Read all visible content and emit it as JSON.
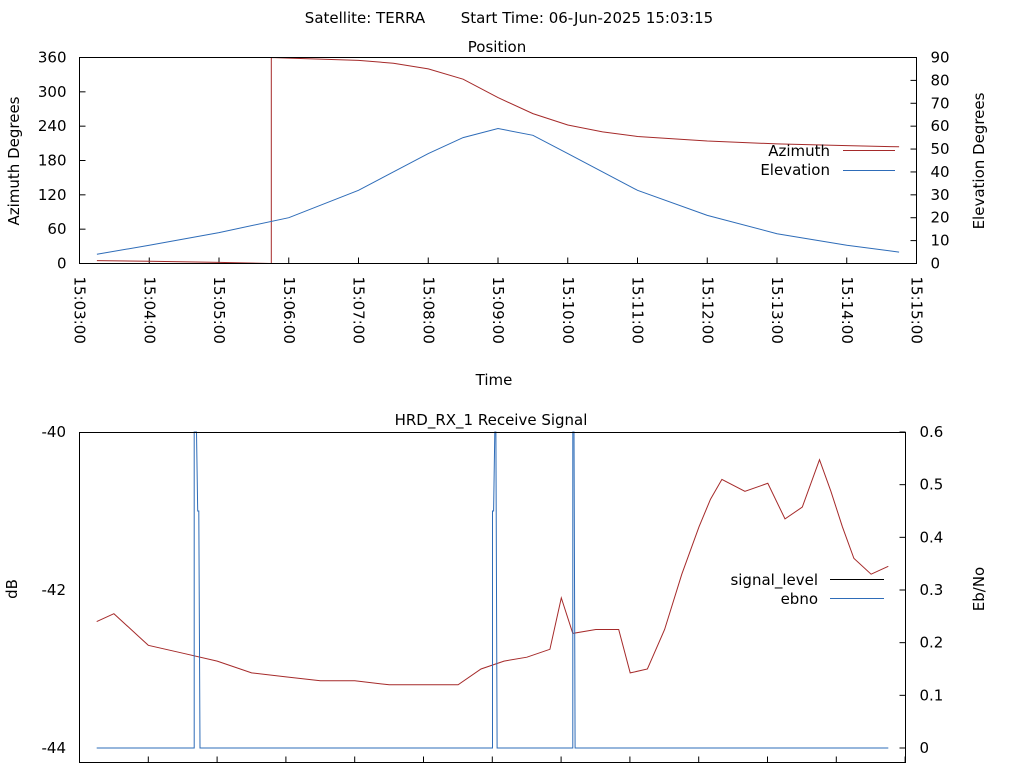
{
  "header": {
    "satellite": "Satellite: TERRA",
    "start_time": "Start Time: 06-Jun-2025 15:03:15"
  },
  "colors": {
    "red_series": "#a52a2a",
    "blue_series": "#2e6cb8",
    "axes": "#000000",
    "background": "#ffffff"
  },
  "chart_data": [
    {
      "type": "line",
      "title": "Position",
      "xlabel": "Time",
      "ylabel": "Azimuth Degrees",
      "y2label": "Elevation Degrees",
      "x_tick_labels": [
        "15:03:00",
        "15:04:00",
        "15:05:00",
        "15:06:00",
        "15:07:00",
        "15:08:00",
        "15:09:00",
        "15:10:00",
        "15:11:00",
        "15:12:00",
        "15:13:00",
        "15:14:00",
        "15:15:00"
      ],
      "xlim": [
        "15:03:00",
        "15:15:00"
      ],
      "ylim": [
        0,
        360
      ],
      "y_ticks": [
        0,
        60,
        120,
        180,
        240,
        300,
        360
      ],
      "y_tick_labels": [
        "0",
        "60",
        "120",
        "180",
        "240",
        "300",
        "360"
      ],
      "y2lim": [
        0,
        90
      ],
      "y2_ticks": [
        0,
        10,
        20,
        30,
        40,
        50,
        60,
        70,
        80,
        90
      ],
      "y2_tick_labels": [
        "0",
        "10",
        "20",
        "30",
        "40",
        "50",
        "60",
        "70",
        "80",
        "90"
      ],
      "legend_position": "right",
      "series": [
        {
          "name": "Azimuth",
          "axis": "left",
          "x": [
            "15:03:15",
            "15:04:00",
            "15:05:00",
            "15:05:45",
            "15:05:45",
            "15:06:00",
            "15:07:00",
            "15:07:30",
            "15:08:00",
            "15:08:30",
            "15:09:00",
            "15:09:30",
            "15:10:00",
            "15:10:30",
            "15:11:00",
            "15:12:00",
            "15:13:00",
            "15:14:00",
            "15:14:45"
          ],
          "values": [
            5,
            4,
            2,
            0,
            360,
            359,
            355,
            350,
            340,
            322,
            290,
            262,
            242,
            230,
            222,
            214,
            209,
            206,
            204
          ]
        },
        {
          "name": "Elevation",
          "axis": "right",
          "x": [
            "15:03:15",
            "15:04:00",
            "15:05:00",
            "15:06:00",
            "15:07:00",
            "15:08:00",
            "15:08:30",
            "15:09:00",
            "15:09:30",
            "15:10:00",
            "15:11:00",
            "15:12:00",
            "15:13:00",
            "15:14:00",
            "15:14:45"
          ],
          "values": [
            4,
            8,
            13.5,
            20,
            32,
            48,
            55,
            59,
            56,
            48,
            32,
            21,
            13,
            8,
            5
          ]
        }
      ]
    },
    {
      "type": "line",
      "title": "HRD_RX_1 Receive Signal",
      "ylabel": "dB",
      "y2label": "Eb/No",
      "ylim": [
        -44,
        -40
      ],
      "y_ticks": [
        -44,
        -42,
        -40
      ],
      "y_tick_labels": [
        "-44",
        "-42",
        "-40"
      ],
      "y2lim": [
        0,
        0.6
      ],
      "y2_ticks": [
        0,
        0.1,
        0.2,
        0.3,
        0.4,
        0.5,
        0.6
      ],
      "y2_tick_labels": [
        "0",
        "0.1",
        "0.2",
        "0.3",
        "0.4",
        "0.5",
        "0.6"
      ],
      "xlim": [
        "15:03:00",
        "15:15:00"
      ],
      "legend_position": "right",
      "series": [
        {
          "name": "signal_level",
          "axis": "left",
          "x": [
            "15:03:15",
            "15:03:30",
            "15:04:00",
            "15:04:30",
            "15:05:00",
            "15:05:30",
            "15:06:00",
            "15:06:30",
            "15:07:00",
            "15:07:30",
            "15:08:00",
            "15:08:30",
            "15:08:50",
            "15:09:10",
            "15:09:30",
            "15:09:50",
            "15:10:00",
            "15:10:10",
            "15:10:30",
            "15:10:50",
            "15:11:00",
            "15:11:15",
            "15:11:30",
            "15:11:45",
            "15:12:00",
            "15:12:10",
            "15:12:20",
            "15:12:40",
            "15:13:00",
            "15:13:15",
            "15:13:30",
            "15:13:45",
            "15:13:55",
            "15:14:05",
            "15:14:15",
            "15:14:30",
            "15:14:45"
          ],
          "values": [
            -42.4,
            -42.3,
            -42.7,
            -42.8,
            -42.9,
            -43.05,
            -43.1,
            -43.15,
            -43.15,
            -43.2,
            -43.2,
            -43.2,
            -43.0,
            -42.9,
            -42.85,
            -42.75,
            -42.1,
            -42.55,
            -42.5,
            -42.5,
            -43.05,
            -43.0,
            -42.5,
            -41.8,
            -41.2,
            -40.85,
            -40.6,
            -40.75,
            -40.65,
            -41.1,
            -40.95,
            -40.35,
            -40.75,
            -41.2,
            -41.6,
            -41.8,
            -41.7
          ]
        },
        {
          "name": "ebno",
          "axis": "right",
          "x": [
            "15:03:15",
            "15:04:40",
            "15:04:40",
            "15:04:42",
            "15:04:43",
            "15:04:44",
            "15:04:45",
            "15:04:47",
            "15:04:47",
            "15:09:00",
            "15:09:00",
            "15:09:01",
            "15:09:02",
            "15:09:03",
            "15:09:04",
            "15:09:06",
            "15:09:06",
            "15:10:10",
            "15:10:10",
            "15:10:11",
            "15:10:12",
            "15:10:13",
            "15:10:14",
            "15:14:45"
          ],
          "values": [
            0,
            0,
            0.6,
            0.6,
            0.45,
            0.45,
            0,
            0,
            0,
            0,
            0.45,
            0.45,
            0.6,
            0.6,
            0,
            0,
            0,
            0,
            0.6,
            0.6,
            0,
            0,
            0,
            0
          ]
        }
      ]
    }
  ]
}
